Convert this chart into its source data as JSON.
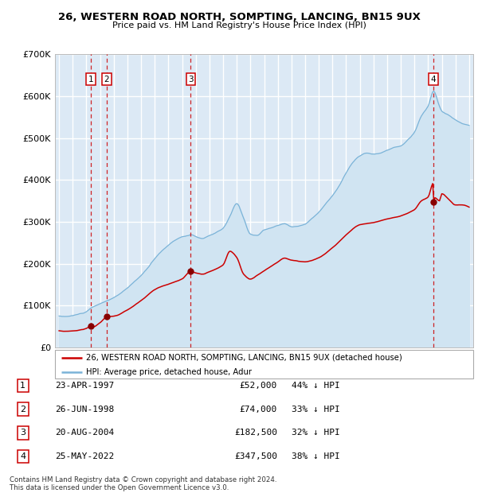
{
  "title1": "26, WESTERN ROAD NORTH, SOMPTING, LANCING, BN15 9UX",
  "title2": "Price paid vs. HM Land Registry's House Price Index (HPI)",
  "sale_dates": [
    "1997-04-23",
    "1998-06-26",
    "2004-08-20",
    "2022-05-25"
  ],
  "sale_prices": [
    52000,
    74000,
    182500,
    347500
  ],
  "sale_labels": [
    "1",
    "2",
    "3",
    "4"
  ],
  "sale_pct": [
    "44% ↓ HPI",
    "33% ↓ HPI",
    "32% ↓ HPI",
    "38% ↓ HPI"
  ],
  "sale_date_strs": [
    "23-APR-1997",
    "26-JUN-1998",
    "20-AUG-2004",
    "25-MAY-2022"
  ],
  "sale_price_strs": [
    "£52,000",
    "£74,000",
    "£182,500",
    "£347,500"
  ],
  "hpi_line_color": "#7ab3d8",
  "hpi_fill_color": "#d0e4f2",
  "property_line_color": "#cc0000",
  "property_dot_color": "#880000",
  "vline_color_sale": "#cc0000",
  "label_box_color": "#cc0000",
  "bg_color": "#dce9f5",
  "grid_color": "#ffffff",
  "legend_label_property": "26, WESTERN ROAD NORTH, SOMPTING, LANCING, BN15 9UX (detached house)",
  "legend_label_hpi": "HPI: Average price, detached house, Adur",
  "footer1": "Contains HM Land Registry data © Crown copyright and database right 2024.",
  "footer2": "This data is licensed under the Open Government Licence v3.0.",
  "ylim": [
    0,
    700000
  ],
  "yticks": [
    0,
    100000,
    200000,
    300000,
    400000,
    500000,
    600000,
    700000
  ],
  "ytick_labels": [
    "£0",
    "£100K",
    "£200K",
    "£300K",
    "£400K",
    "£500K",
    "£600K",
    "£700K"
  ],
  "xlim_start": 1994.7,
  "xlim_end": 2025.3,
  "hpi_anchors_x": [
    1995.0,
    1995.5,
    1996.0,
    1996.5,
    1997.0,
    1997.33,
    1997.5,
    1998.0,
    1998.5,
    1999.0,
    1999.5,
    2000.0,
    2000.5,
    2001.0,
    2001.5,
    2002.0,
    2002.5,
    2003.0,
    2003.5,
    2004.0,
    2004.5,
    2004.63,
    2005.0,
    2005.5,
    2006.0,
    2006.5,
    2007.0,
    2007.5,
    2008.0,
    2008.5,
    2009.0,
    2009.5,
    2010.0,
    2010.5,
    2011.0,
    2011.5,
    2012.0,
    2012.5,
    2013.0,
    2013.5,
    2014.0,
    2014.5,
    2015.0,
    2015.5,
    2016.0,
    2016.5,
    2017.0,
    2017.5,
    2018.0,
    2018.5,
    2019.0,
    2019.5,
    2020.0,
    2020.5,
    2021.0,
    2021.5,
    2022.0,
    2022.4,
    2022.83,
    2023.0,
    2023.5,
    2024.0,
    2024.5,
    2025.0
  ],
  "hpi_anchors_y": [
    75000,
    74000,
    76000,
    80000,
    85000,
    93000,
    96000,
    103000,
    110000,
    118000,
    128000,
    140000,
    155000,
    170000,
    188000,
    210000,
    228000,
    242000,
    255000,
    263000,
    266000,
    268000,
    264000,
    258000,
    265000,
    272000,
    282000,
    310000,
    340000,
    305000,
    268000,
    265000,
    278000,
    282000,
    288000,
    292000,
    285000,
    287000,
    292000,
    305000,
    320000,
    340000,
    360000,
    385000,
    415000,
    440000,
    455000,
    462000,
    460000,
    462000,
    468000,
    475000,
    478000,
    492000,
    510000,
    548000,
    572000,
    608000,
    572000,
    560000,
    550000,
    538000,
    530000,
    525000
  ],
  "prop_anchors_x": [
    1995.0,
    1995.5,
    1996.0,
    1996.5,
    1997.0,
    1997.33,
    1997.5,
    1998.0,
    1998.5,
    1999.0,
    2000.0,
    2001.0,
    2002.0,
    2003.0,
    2004.0,
    2004.63,
    2005.0,
    2005.5,
    2006.0,
    2007.0,
    2007.5,
    2008.0,
    2008.5,
    2009.0,
    2009.5,
    2010.0,
    2011.0,
    2011.5,
    2012.0,
    2013.0,
    2014.0,
    2015.0,
    2016.0,
    2017.0,
    2018.0,
    2019.0,
    2020.0,
    2021.0,
    2021.5,
    2022.0,
    2022.38,
    2022.42,
    2022.5,
    2022.83,
    2023.0,
    2023.5,
    2024.0,
    2024.5,
    2025.0
  ],
  "prop_anchors_y": [
    40000,
    39000,
    40000,
    42000,
    46000,
    52000,
    50000,
    60000,
    74000,
    75000,
    90000,
    112000,
    138000,
    152000,
    165000,
    182500,
    179000,
    176000,
    182000,
    198000,
    230000,
    215000,
    175000,
    163000,
    172000,
    182000,
    203000,
    213000,
    208000,
    204000,
    214000,
    238000,
    268000,
    293000,
    298000,
    307000,
    314000,
    328000,
    348000,
    357000,
    390000,
    347500,
    355000,
    348000,
    365000,
    352000,
    338000,
    338000,
    333000
  ]
}
